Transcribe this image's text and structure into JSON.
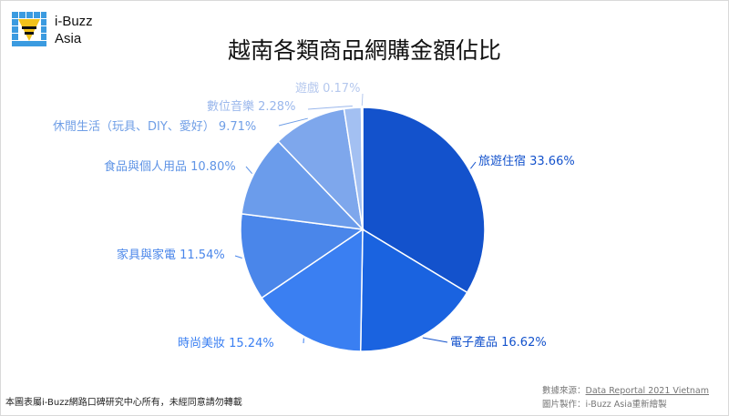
{
  "brand": {
    "line1": "i-Buzz",
    "line2": "Asia"
  },
  "chart_data": {
    "type": "pie",
    "title": "越南各類商品網購金額佔比",
    "slices": [
      {
        "label": "旅遊住宿",
        "value": 33.66,
        "display": "33.66%",
        "color": "#1352cc"
      },
      {
        "label": "電子產品",
        "value": 16.62,
        "display": "16.62%",
        "color": "#1a63e0"
      },
      {
        "label": "時尚美妝",
        "value": 15.24,
        "display": "15.24%",
        "color": "#3a7ff2"
      },
      {
        "label": "家具與家電",
        "value": 11.54,
        "display": "11.54%",
        "color": "#4a86ea"
      },
      {
        "label": "食品與個人用品",
        "value": 10.8,
        "display": "10.80%",
        "color": "#6b9ceb"
      },
      {
        "label": "休閒生活（玩具、DIY、愛好）",
        "value": 9.71,
        "display": "9.71%",
        "color": "#7ea7ec"
      },
      {
        "label": "數位音樂",
        "value": 2.28,
        "display": "2.28%",
        "color": "#a3c0f2"
      },
      {
        "label": "遊戲",
        "value": 0.17,
        "display": "0.17%",
        "color": "#c3d5f5"
      }
    ],
    "start_angle_deg": 0,
    "direction": "clockwise"
  },
  "footer": {
    "copyright": "本圖表屬i-Buzz網路口碑研究中心所有，未經同意請勿轉載",
    "source_prefix": "數據來源：",
    "source_name": "Data Reportal 2021 Vietnam",
    "made_by": "圖片製作：i-Buzz Asia重新繪製"
  }
}
